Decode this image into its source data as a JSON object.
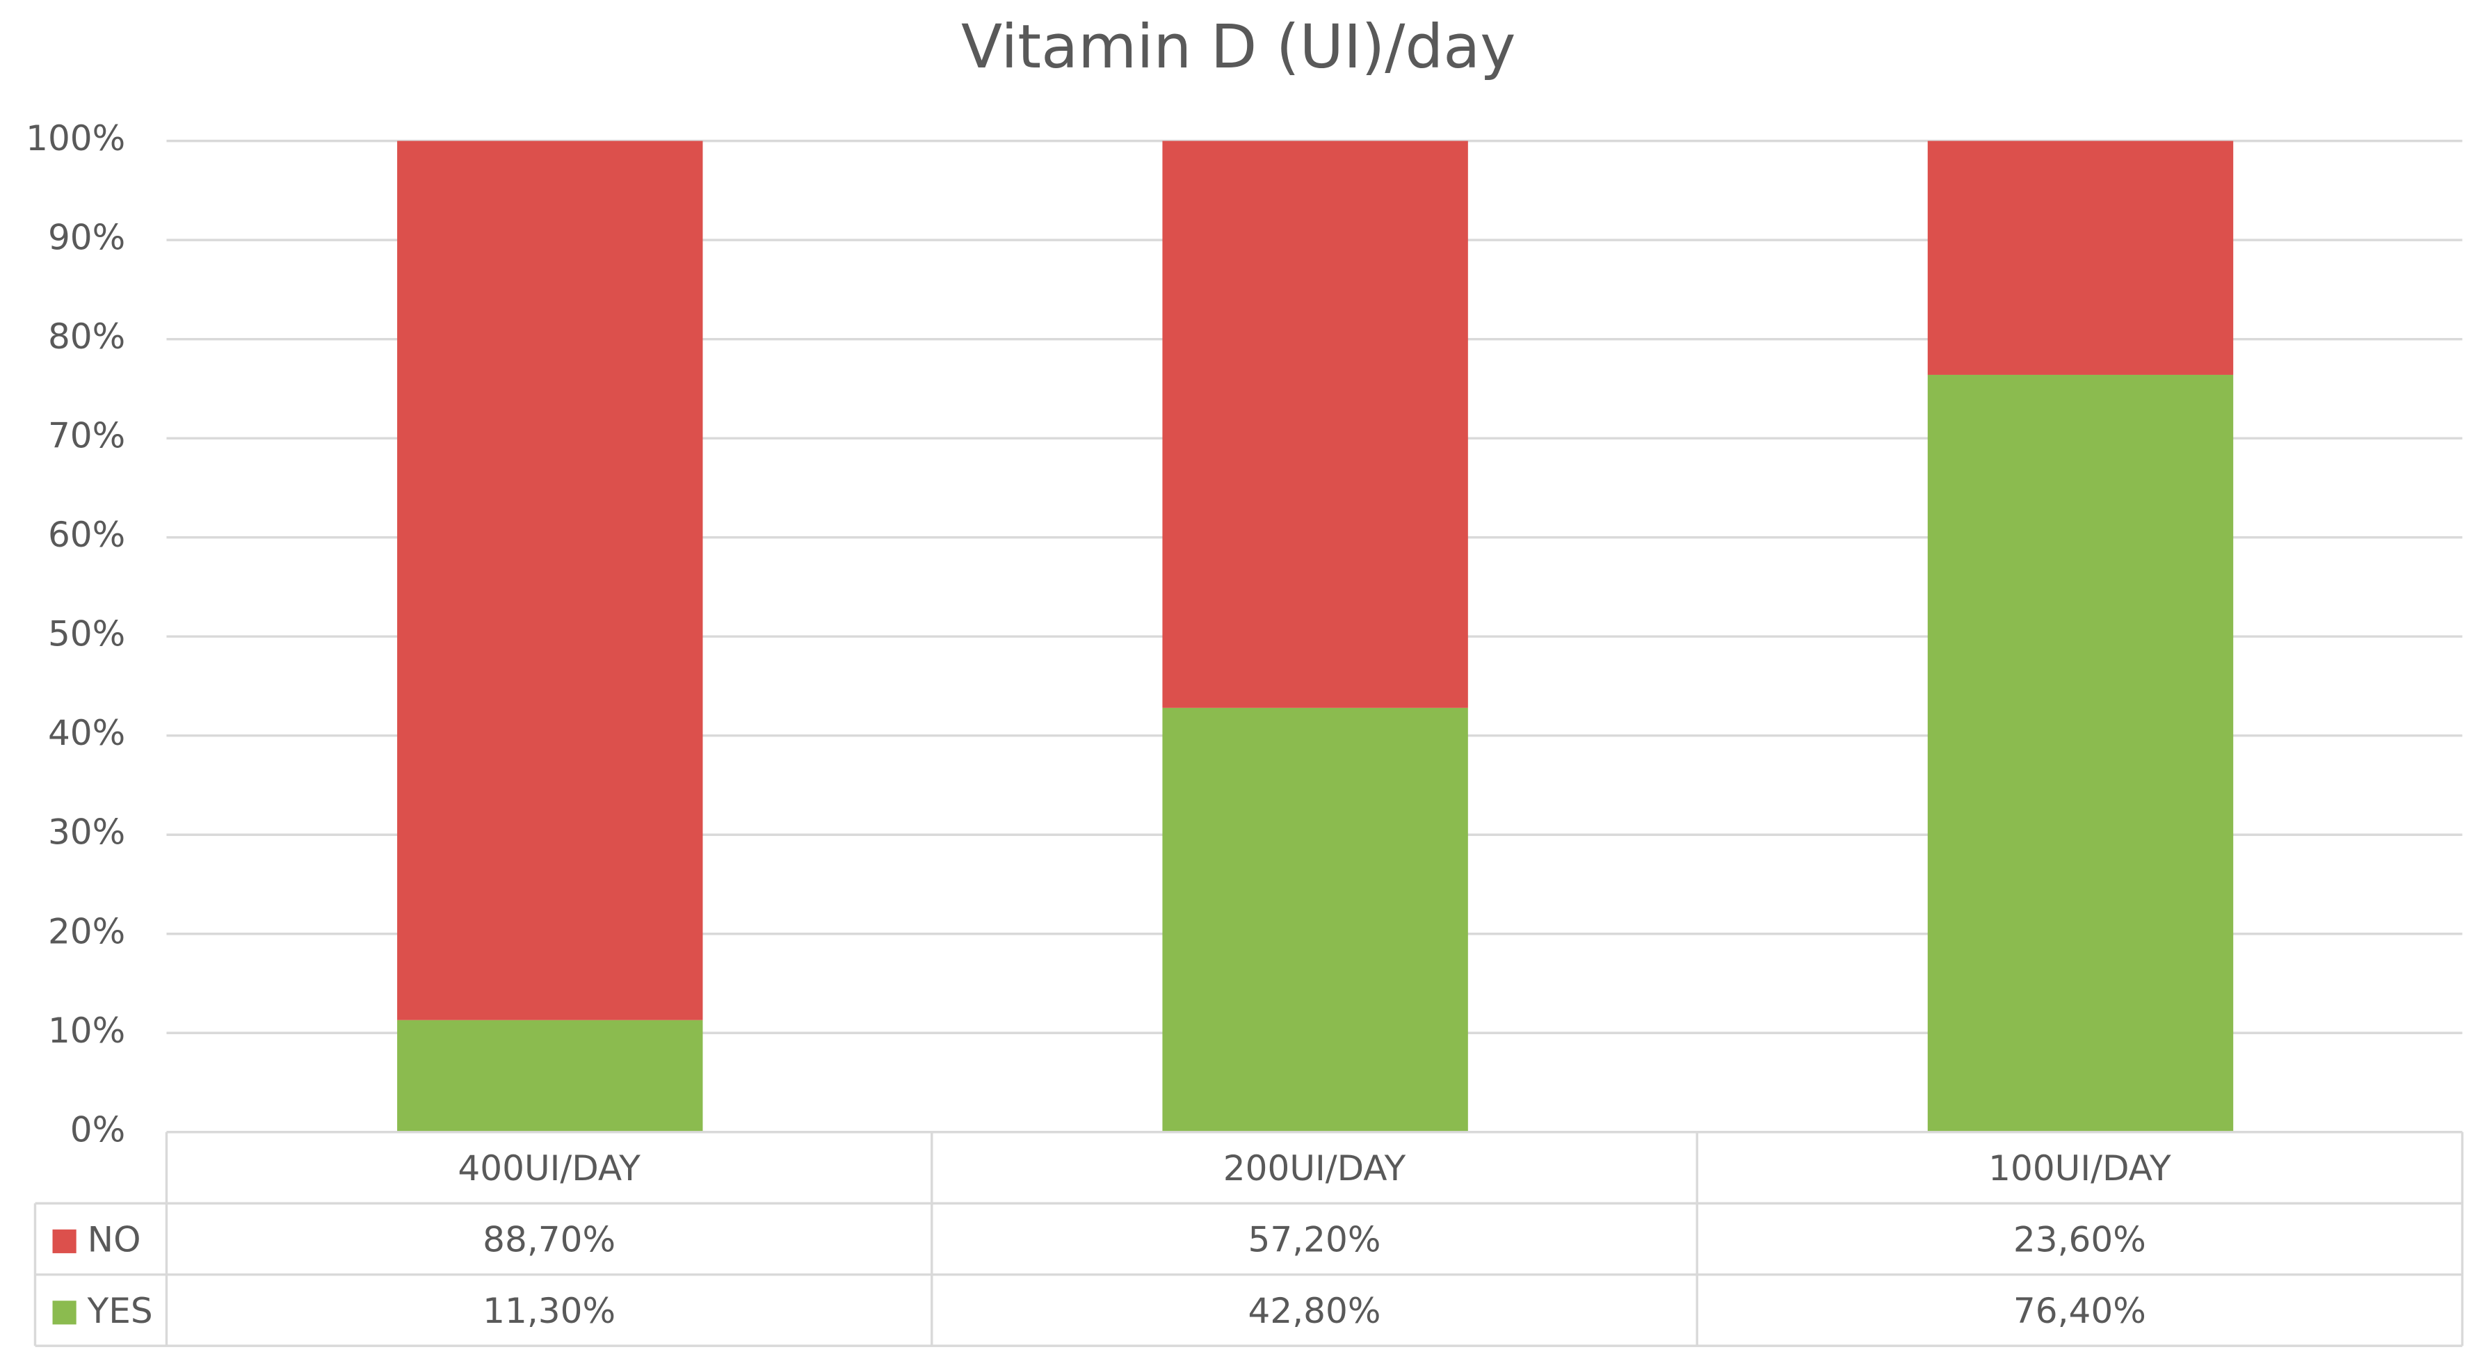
{
  "chart_data": {
    "type": "stacked_bar",
    "title": "Vitamin D (UI)/day",
    "categories": [
      "400UI/DAY",
      "200UI/DAY",
      "100UI/DAY"
    ],
    "series": [
      {
        "name": "NO",
        "color": "#dc504c",
        "values": [
          88.7,
          57.2,
          23.6
        ],
        "value_labels": [
          "88,70%",
          "57,20%",
          "23,60%"
        ]
      },
      {
        "name": "YES",
        "color": "#8bbb4f",
        "values": [
          11.3,
          42.8,
          76.4
        ],
        "value_labels": [
          "11,30%",
          "42,80%",
          "76,40%"
        ]
      }
    ],
    "ylim": [
      0,
      100
    ],
    "yticks": [
      {
        "value": 0,
        "label": "0%"
      },
      {
        "value": 10,
        "label": "10%"
      },
      {
        "value": 20,
        "label": "20%"
      },
      {
        "value": 30,
        "label": "30%"
      },
      {
        "value": 40,
        "label": "40%"
      },
      {
        "value": 50,
        "label": "50%"
      },
      {
        "value": 60,
        "label": "60%"
      },
      {
        "value": 70,
        "label": "70%"
      },
      {
        "value": 80,
        "label": "80%"
      },
      {
        "value": 90,
        "label": "90%"
      },
      {
        "value": 100,
        "label": "100%"
      }
    ],
    "grid": true
  }
}
